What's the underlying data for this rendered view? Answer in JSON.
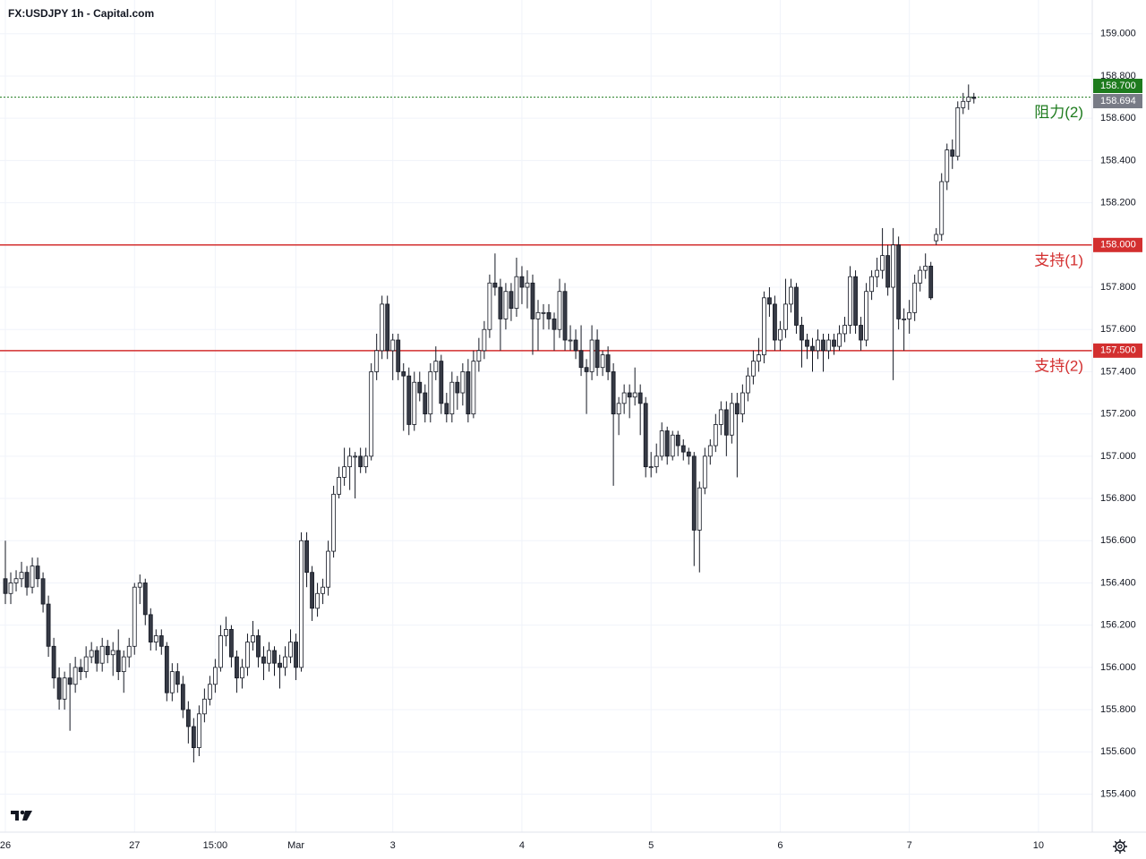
{
  "chart_data": {
    "type": "candlestick",
    "title": "FX:USDJPY 1h - Capital.com",
    "up_color": "#ffffff",
    "down_color": "#363a45",
    "wick_color": "#131722",
    "grid": true,
    "xlim": [
      -1,
      202
    ],
    "ylim": [
      155.22,
      159.16
    ],
    "xticks": [
      {
        "value": 0,
        "label": "26"
      },
      {
        "value": 24,
        "label": "27"
      },
      {
        "value": 39,
        "label": "15:00"
      },
      {
        "value": 54,
        "label": "Mar"
      },
      {
        "value": 72,
        "label": "3"
      },
      {
        "value": 96,
        "label": "4"
      },
      {
        "value": 120,
        "label": "5"
      },
      {
        "value": 144,
        "label": "6"
      },
      {
        "value": 168,
        "label": "7"
      },
      {
        "value": 192,
        "label": "10"
      }
    ],
    "yticks": [
      {
        "value": 155.4,
        "label": "155.400"
      },
      {
        "value": 155.6,
        "label": "155.600"
      },
      {
        "value": 155.8,
        "label": "155.800"
      },
      {
        "value": 156.0,
        "label": "156.000"
      },
      {
        "value": 156.2,
        "label": "156.200"
      },
      {
        "value": 156.4,
        "label": "156.400"
      },
      {
        "value": 156.6,
        "label": "156.600"
      },
      {
        "value": 156.8,
        "label": "156.800"
      },
      {
        "value": 157.0,
        "label": "157.000"
      },
      {
        "value": 157.2,
        "label": "157.200"
      },
      {
        "value": 157.4,
        "label": "157.400"
      },
      {
        "value": 157.6,
        "label": "157.600"
      },
      {
        "value": 157.8,
        "label": "157.800"
      },
      {
        "value": 158.0,
        "label": "158.000"
      },
      {
        "value": 158.2,
        "label": "158.200"
      },
      {
        "value": 158.4,
        "label": "158.400"
      },
      {
        "value": 158.6,
        "label": "158.600"
      },
      {
        "value": 158.8,
        "label": "158.800"
      },
      {
        "value": 159.0,
        "label": "159.000"
      }
    ],
    "levels": [
      {
        "value": 158.7,
        "label": "158.700",
        "name": "阻力(2)",
        "color": "#1e7b1e",
        "dashed": true
      },
      {
        "value": 158.0,
        "label": "158.000",
        "name": "支持(1)",
        "color": "#d32f2f",
        "dashed": false
      },
      {
        "value": 157.5,
        "label": "157.500",
        "name": "支持(2)",
        "color": "#d32f2f",
        "dashed": false
      }
    ],
    "last_price": {
      "value": 158.694,
      "label": "158.694",
      "color": "#787b86"
    },
    "x": [
      0,
      1,
      2,
      3,
      4,
      5,
      6,
      7,
      8,
      9,
      10,
      11,
      12,
      13,
      14,
      15,
      16,
      17,
      18,
      19,
      20,
      21,
      22,
      23,
      24,
      25,
      26,
      27,
      28,
      29,
      30,
      31,
      32,
      33,
      34,
      35,
      36,
      37,
      38,
      39,
      40,
      41,
      42,
      43,
      44,
      45,
      46,
      47,
      48,
      49,
      50,
      51,
      52,
      53,
      54,
      55,
      56,
      57,
      58,
      59,
      60,
      61,
      62,
      63,
      64,
      65,
      66,
      67,
      68,
      69,
      70,
      71,
      72,
      73,
      74,
      75,
      76,
      77,
      78,
      79,
      80,
      81,
      82,
      83,
      84,
      85,
      86,
      87,
      88,
      89,
      90,
      91,
      92,
      93,
      94,
      95,
      96,
      97,
      98,
      99,
      100,
      101,
      102,
      103,
      104,
      105,
      106,
      107,
      108,
      109,
      110,
      111,
      112,
      113,
      114,
      115,
      116,
      117,
      118,
      119,
      120,
      121,
      122,
      123,
      124,
      125,
      126,
      127,
      128,
      129,
      130,
      131,
      132,
      133,
      134,
      135,
      136,
      137,
      138,
      139,
      140,
      141,
      142,
      143,
      144,
      145,
      146,
      147,
      148,
      149,
      150,
      151,
      152,
      153,
      154,
      155,
      156,
      157,
      158,
      159,
      160,
      161,
      162,
      163,
      164,
      165,
      166,
      167,
      168,
      169,
      170,
      171,
      172,
      173,
      174,
      175,
      176,
      177,
      178,
      179,
      180
    ],
    "ohlc": [
      [
        156.42,
        156.6,
        156.3,
        156.35
      ],
      [
        156.35,
        156.45,
        156.3,
        156.4
      ],
      [
        156.4,
        156.46,
        156.36,
        156.42
      ],
      [
        156.42,
        156.5,
        156.38,
        156.45
      ],
      [
        156.45,
        156.48,
        156.34,
        156.38
      ],
      [
        156.38,
        156.52,
        156.35,
        156.48
      ],
      [
        156.48,
        156.52,
        156.38,
        156.42
      ],
      [
        156.42,
        156.45,
        156.26,
        156.3
      ],
      [
        156.3,
        156.34,
        156.05,
        156.1
      ],
      [
        156.1,
        156.14,
        155.9,
        155.95
      ],
      [
        155.95,
        156.0,
        155.8,
        155.85
      ],
      [
        155.85,
        155.98,
        155.8,
        155.95
      ],
      [
        155.95,
        156.02,
        155.7,
        155.92
      ],
      [
        155.92,
        156.05,
        155.88,
        156.0
      ],
      [
        156.0,
        156.04,
        155.94,
        155.98
      ],
      [
        155.98,
        156.1,
        155.95,
        156.05
      ],
      [
        156.05,
        156.12,
        156.02,
        156.08
      ],
      [
        156.08,
        156.1,
        155.98,
        156.02
      ],
      [
        156.02,
        156.14,
        155.98,
        156.1
      ],
      [
        156.1,
        156.13,
        156.02,
        156.06
      ],
      [
        156.06,
        156.12,
        155.96,
        156.08
      ],
      [
        156.08,
        156.18,
        155.94,
        155.98
      ],
      [
        155.98,
        156.08,
        155.88,
        156.05
      ],
      [
        156.05,
        156.14,
        156.0,
        156.1
      ],
      [
        156.1,
        156.4,
        156.06,
        156.38
      ],
      [
        156.38,
        156.44,
        156.3,
        156.4
      ],
      [
        156.4,
        156.42,
        156.2,
        156.25
      ],
      [
        156.25,
        156.28,
        156.08,
        156.12
      ],
      [
        156.12,
        156.18,
        156.08,
        156.15
      ],
      [
        156.15,
        156.18,
        156.06,
        156.1
      ],
      [
        156.1,
        156.12,
        155.84,
        155.88
      ],
      [
        155.88,
        156.02,
        155.84,
        155.98
      ],
      [
        155.98,
        156.02,
        155.88,
        155.92
      ],
      [
        155.92,
        155.96,
        155.76,
        155.8
      ],
      [
        155.8,
        155.84,
        155.64,
        155.72
      ],
      [
        155.72,
        155.76,
        155.55,
        155.62
      ],
      [
        155.62,
        155.82,
        155.58,
        155.78
      ],
      [
        155.78,
        155.9,
        155.74,
        155.85
      ],
      [
        155.85,
        155.96,
        155.82,
        155.92
      ],
      [
        155.92,
        156.04,
        155.88,
        156.0
      ],
      [
        156.0,
        156.2,
        155.98,
        156.15
      ],
      [
        156.15,
        156.24,
        156.1,
        156.18
      ],
      [
        156.18,
        156.2,
        156.0,
        156.05
      ],
      [
        156.05,
        156.08,
        155.88,
        155.95
      ],
      [
        155.95,
        156.04,
        155.9,
        156.0
      ],
      [
        156.0,
        156.16,
        155.96,
        156.12
      ],
      [
        156.12,
        156.22,
        156.08,
        156.15
      ],
      [
        156.15,
        156.18,
        156.0,
        156.05
      ],
      [
        156.05,
        156.1,
        155.94,
        156.02
      ],
      [
        156.02,
        156.12,
        155.98,
        156.08
      ],
      [
        156.08,
        156.1,
        155.96,
        156.02
      ],
      [
        156.02,
        156.06,
        155.9,
        156.0
      ],
      [
        156.0,
        156.1,
        155.96,
        156.05
      ],
      [
        156.05,
        156.18,
        156.02,
        156.12
      ],
      [
        156.12,
        156.16,
        155.94,
        156.0
      ],
      [
        156.0,
        156.64,
        155.98,
        156.6
      ],
      [
        156.6,
        156.64,
        156.38,
        156.45
      ],
      [
        156.45,
        156.48,
        156.22,
        156.28
      ],
      [
        156.28,
        156.4,
        156.24,
        156.35
      ],
      [
        156.35,
        156.42,
        156.3,
        156.38
      ],
      [
        156.38,
        156.6,
        156.34,
        156.55
      ],
      [
        156.55,
        156.86,
        156.52,
        156.82
      ],
      [
        156.82,
        156.95,
        156.8,
        156.9
      ],
      [
        156.9,
        157.04,
        156.86,
        156.95
      ],
      [
        156.95,
        157.04,
        156.84,
        157.0
      ],
      [
        157.0,
        157.02,
        156.8,
        157.0
      ],
      [
        157.0,
        157.04,
        156.92,
        156.95
      ],
      [
        156.95,
        157.04,
        156.92,
        157.0
      ],
      [
        157.0,
        157.44,
        156.98,
        157.4
      ],
      [
        157.4,
        157.58,
        157.36,
        157.5
      ],
      [
        157.5,
        157.76,
        157.46,
        157.72
      ],
      [
        157.72,
        157.76,
        157.46,
        157.5
      ],
      [
        157.5,
        157.58,
        157.36,
        157.55
      ],
      [
        157.55,
        157.58,
        157.36,
        157.4
      ],
      [
        157.4,
        157.44,
        157.12,
        157.38
      ],
      [
        157.38,
        157.42,
        157.1,
        157.15
      ],
      [
        157.15,
        157.4,
        157.12,
        157.35
      ],
      [
        157.35,
        157.4,
        157.26,
        157.3
      ],
      [
        157.3,
        157.34,
        157.16,
        157.2
      ],
      [
        157.2,
        157.44,
        157.16,
        157.4
      ],
      [
        157.4,
        157.52,
        157.36,
        157.45
      ],
      [
        157.45,
        157.48,
        157.2,
        157.25
      ],
      [
        157.25,
        157.3,
        157.16,
        157.2
      ],
      [
        157.2,
        157.4,
        157.16,
        157.35
      ],
      [
        157.35,
        157.38,
        157.22,
        157.3
      ],
      [
        157.3,
        157.44,
        157.24,
        157.4
      ],
      [
        157.4,
        157.46,
        157.16,
        157.2
      ],
      [
        157.2,
        157.5,
        157.18,
        157.45
      ],
      [
        157.45,
        157.56,
        157.4,
        157.5
      ],
      [
        157.5,
        157.64,
        157.46,
        157.6
      ],
      [
        157.6,
        157.86,
        157.56,
        157.82
      ],
      [
        157.82,
        157.96,
        157.76,
        157.8
      ],
      [
        157.8,
        157.84,
        157.5,
        157.65
      ],
      [
        157.65,
        157.82,
        157.6,
        157.78
      ],
      [
        157.78,
        157.82,
        157.64,
        157.7
      ],
      [
        157.7,
        157.94,
        157.66,
        157.85
      ],
      [
        157.85,
        157.9,
        157.72,
        157.8
      ],
      [
        157.8,
        157.88,
        157.7,
        157.82
      ],
      [
        157.82,
        157.86,
        157.48,
        157.65
      ],
      [
        157.65,
        157.74,
        157.5,
        157.68
      ],
      [
        157.68,
        157.72,
        157.6,
        157.68
      ],
      [
        157.68,
        157.72,
        157.6,
        157.65
      ],
      [
        157.65,
        157.68,
        157.5,
        157.6
      ],
      [
        157.6,
        157.84,
        157.56,
        157.78
      ],
      [
        157.78,
        157.82,
        157.5,
        157.55
      ],
      [
        157.55,
        157.62,
        157.5,
        157.55
      ],
      [
        157.55,
        157.6,
        157.46,
        157.5
      ],
      [
        157.5,
        157.62,
        157.38,
        157.42
      ],
      [
        157.42,
        157.46,
        157.2,
        157.4
      ],
      [
        157.4,
        157.62,
        157.36,
        157.55
      ],
      [
        157.55,
        157.6,
        157.38,
        157.42
      ],
      [
        157.42,
        157.5,
        157.38,
        157.48
      ],
      [
        157.48,
        157.52,
        157.36,
        157.4
      ],
      [
        157.4,
        157.44,
        156.86,
        157.2
      ],
      [
        157.2,
        157.28,
        157.1,
        157.25
      ],
      [
        157.25,
        157.34,
        157.2,
        157.3
      ],
      [
        157.3,
        157.34,
        157.18,
        157.28
      ],
      [
        157.28,
        157.42,
        157.24,
        157.3
      ],
      [
        157.3,
        157.34,
        157.1,
        157.25
      ],
      [
        157.25,
        157.28,
        156.9,
        156.95
      ],
      [
        156.95,
        157.02,
        156.9,
        156.95
      ],
      [
        156.95,
        157.06,
        156.92,
        157.0
      ],
      [
        157.0,
        157.16,
        156.98,
        157.12
      ],
      [
        157.12,
        157.14,
        156.96,
        157.0
      ],
      [
        157.0,
        157.12,
        156.98,
        157.1
      ],
      [
        157.1,
        157.12,
        157.0,
        157.05
      ],
      [
        157.05,
        157.08,
        156.98,
        157.02
      ],
      [
        157.02,
        157.04,
        156.96,
        157.0
      ],
      [
        157.0,
        157.02,
        156.48,
        156.65
      ],
      [
        156.65,
        156.88,
        156.45,
        156.85
      ],
      [
        156.85,
        157.04,
        156.82,
        157.0
      ],
      [
        157.0,
        157.08,
        156.96,
        157.05
      ],
      [
        157.05,
        157.2,
        157.02,
        157.15
      ],
      [
        157.15,
        157.26,
        157.1,
        157.22
      ],
      [
        157.22,
        157.26,
        157.0,
        157.1
      ],
      [
        157.1,
        157.3,
        157.06,
        157.25
      ],
      [
        157.25,
        157.3,
        156.9,
        157.2
      ],
      [
        157.2,
        157.34,
        157.16,
        157.3
      ],
      [
        157.3,
        157.42,
        157.26,
        157.38
      ],
      [
        157.38,
        157.5,
        157.34,
        157.45
      ],
      [
        157.45,
        157.56,
        157.4,
        157.48
      ],
      [
        157.48,
        157.78,
        157.44,
        157.75
      ],
      [
        157.75,
        157.8,
        157.66,
        157.72
      ],
      [
        157.72,
        157.76,
        157.5,
        157.55
      ],
      [
        157.55,
        157.64,
        157.5,
        157.6
      ],
      [
        157.6,
        157.84,
        157.56,
        157.72
      ],
      [
        157.72,
        157.84,
        157.68,
        157.8
      ],
      [
        157.8,
        157.82,
        157.58,
        157.62
      ],
      [
        157.62,
        157.66,
        157.42,
        157.55
      ],
      [
        157.55,
        157.58,
        157.46,
        157.52
      ],
      [
        157.52,
        157.56,
        157.4,
        157.5
      ],
      [
        157.5,
        157.6,
        157.46,
        157.55
      ],
      [
        157.55,
        157.58,
        157.4,
        157.5
      ],
      [
        157.5,
        157.58,
        157.46,
        157.55
      ],
      [
        157.55,
        157.58,
        157.48,
        157.52
      ],
      [
        157.52,
        157.62,
        157.5,
        157.58
      ],
      [
        157.58,
        157.66,
        157.54,
        157.62
      ],
      [
        157.62,
        157.9,
        157.58,
        157.85
      ],
      [
        157.85,
        157.88,
        157.58,
        157.62
      ],
      [
        157.62,
        157.66,
        157.5,
        157.55
      ],
      [
        157.55,
        157.82,
        157.52,
        157.78
      ],
      [
        157.78,
        157.88,
        157.74,
        157.85
      ],
      [
        157.85,
        157.94,
        157.8,
        157.88
      ],
      [
        157.88,
        158.08,
        157.84,
        157.95
      ],
      [
        157.95,
        158.0,
        157.76,
        157.8
      ],
      [
        157.8,
        158.08,
        157.36,
        158.0
      ],
      [
        158.0,
        158.04,
        157.6,
        157.65
      ],
      [
        157.65,
        157.7,
        157.5,
        157.65
      ],
      [
        157.65,
        157.74,
        157.58,
        157.68
      ],
      [
        157.68,
        157.86,
        157.64,
        157.82
      ],
      [
        157.82,
        157.9,
        157.78,
        157.88
      ],
      [
        157.88,
        157.96,
        157.84,
        157.9
      ],
      [
        157.9,
        157.92,
        157.74,
        157.75
      ],
      [
        158.02,
        158.08,
        158.0,
        158.05
      ],
      [
        158.05,
        158.34,
        158.02,
        158.3
      ],
      [
        158.3,
        158.48,
        158.26,
        158.45
      ],
      [
        158.45,
        158.5,
        158.36,
        158.42
      ],
      [
        158.42,
        158.68,
        158.4,
        158.65
      ],
      [
        158.65,
        158.72,
        158.62,
        158.68
      ],
      [
        158.68,
        158.76,
        158.64,
        158.7
      ],
      [
        158.7,
        158.72,
        158.67,
        158.694
      ]
    ]
  }
}
